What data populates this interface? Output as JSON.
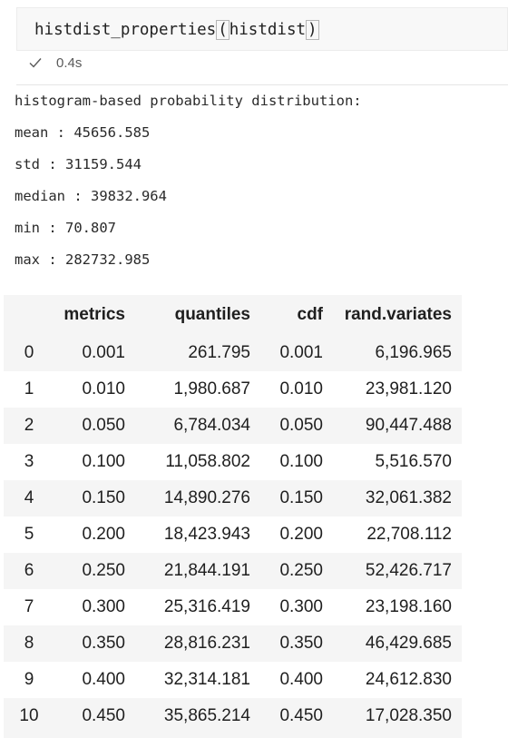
{
  "input_cell": {
    "code_prefix": "histdist_properties",
    "open_paren": "(",
    "code_arg": "histdist",
    "close_paren": ")",
    "exec_time": "0.4s"
  },
  "output": {
    "lines": [
      "histogram-based probability distribution:",
      "mean : 45656.585",
      "std : 31159.544",
      "median : 39832.964",
      "min : 70.807",
      "max : 282732.985"
    ],
    "table": {
      "headers": [
        "",
        "metrics",
        "quantiles",
        "cdf",
        "rand.variates"
      ],
      "rows": [
        [
          "0",
          "0.001",
          "261.795",
          "0.001",
          "6,196.965"
        ],
        [
          "1",
          "0.010",
          "1,980.687",
          "0.010",
          "23,981.120"
        ],
        [
          "2",
          "0.050",
          "6,784.034",
          "0.050",
          "90,447.488"
        ],
        [
          "3",
          "0.100",
          "11,058.802",
          "0.100",
          "5,516.570"
        ],
        [
          "4",
          "0.150",
          "14,890.276",
          "0.150",
          "32,061.382"
        ],
        [
          "5",
          "0.200",
          "18,423.943",
          "0.200",
          "22,708.112"
        ],
        [
          "6",
          "0.250",
          "21,844.191",
          "0.250",
          "52,426.717"
        ],
        [
          "7",
          "0.300",
          "25,316.419",
          "0.300",
          "23,198.160"
        ],
        [
          "8",
          "0.350",
          "28,816.231",
          "0.350",
          "46,429.685"
        ],
        [
          "9",
          "0.400",
          "32,314.181",
          "0.400",
          "24,612.830"
        ],
        [
          "10",
          "0.450",
          "35,865.214",
          "0.450",
          "17,028.350"
        ]
      ]
    }
  },
  "icons": {
    "exec_status": "check-icon"
  }
}
